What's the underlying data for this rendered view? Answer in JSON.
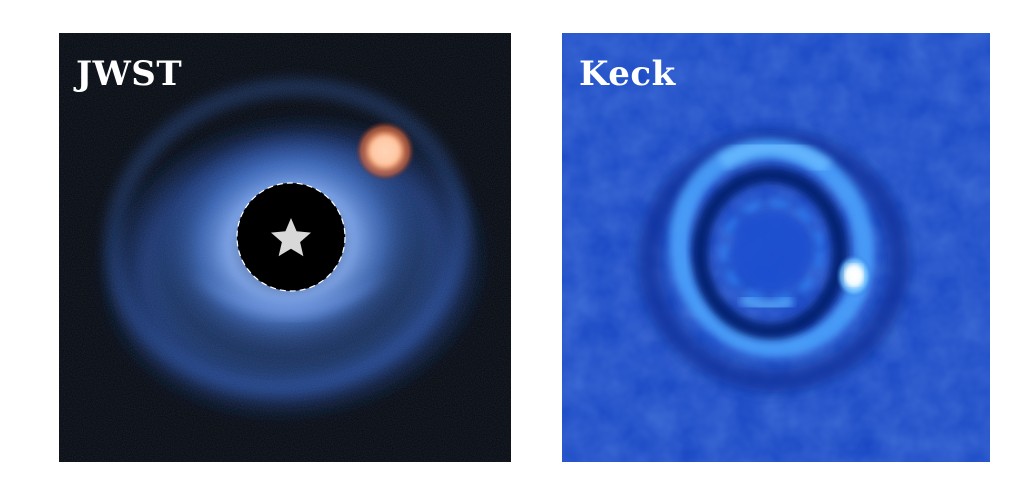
{
  "panels": [
    {
      "label": "JWST"
    },
    {
      "label": "Keck"
    }
  ],
  "icons": {
    "star": "star-icon"
  },
  "colors": {
    "jwst_background": "#050608",
    "jwst_disk": "#3b6fd8",
    "jwst_planet": "#f08f5e",
    "keck_background": "#1846c4",
    "keck_ring": "#5ab2ff",
    "keck_planet": "#f4fbff"
  }
}
